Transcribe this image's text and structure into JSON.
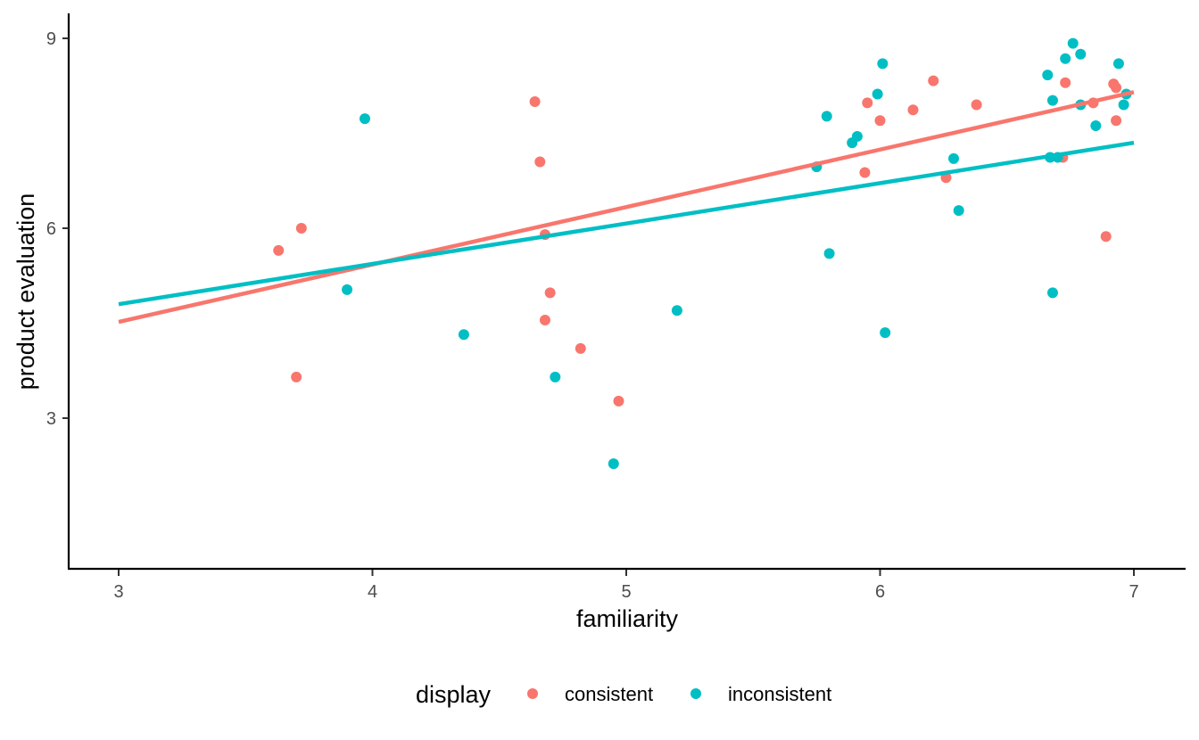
{
  "chart_data": {
    "type": "scatter",
    "xlabel": "familiarity",
    "ylabel": "product evaluation",
    "xlim": [
      2.8,
      7.2
    ],
    "ylim": [
      0.6,
      9.4
    ],
    "xticks": [
      "3",
      "4",
      "5",
      "6",
      "7"
    ],
    "yticks": [
      "3",
      "6",
      "9"
    ],
    "grid": false,
    "legend": {
      "title": "display",
      "placement": "bottom"
    },
    "series": [
      {
        "name": "consistent",
        "color": "#F8766D",
        "points": [
          [
            3.63,
            5.65
          ],
          [
            3.72,
            6.0
          ],
          [
            3.7,
            3.65
          ],
          [
            4.64,
            8.0
          ],
          [
            4.66,
            7.05
          ],
          [
            4.68,
            5.9
          ],
          [
            4.7,
            4.98
          ],
          [
            4.68,
            4.55
          ],
          [
            4.82,
            4.1
          ],
          [
            4.97,
            3.27
          ],
          [
            5.94,
            6.88
          ],
          [
            5.95,
            7.98
          ],
          [
            6.0,
            7.7
          ],
          [
            6.13,
            7.87
          ],
          [
            6.21,
            8.33
          ],
          [
            6.26,
            6.8
          ],
          [
            6.38,
            7.95
          ],
          [
            6.72,
            7.12
          ],
          [
            6.73,
            8.3
          ],
          [
            6.84,
            7.98
          ],
          [
            6.89,
            5.87
          ],
          [
            6.92,
            8.28
          ],
          [
            6.93,
            8.22
          ],
          [
            6.93,
            7.7
          ]
        ],
        "fit_line": {
          "x": [
            3.0,
            7.0
          ],
          "y": [
            4.52,
            8.15
          ]
        }
      },
      {
        "name": "inconsistent",
        "color": "#00BFC4",
        "points": [
          [
            3.9,
            5.03
          ],
          [
            3.97,
            7.73
          ],
          [
            4.36,
            4.32
          ],
          [
            4.72,
            3.65
          ],
          [
            4.95,
            2.28
          ],
          [
            5.2,
            4.7
          ],
          [
            5.75,
            6.97
          ],
          [
            5.79,
            7.77
          ],
          [
            5.8,
            5.6
          ],
          [
            5.89,
            7.35
          ],
          [
            5.91,
            7.45
          ],
          [
            5.99,
            8.12
          ],
          [
            6.01,
            8.6
          ],
          [
            6.02,
            4.35
          ],
          [
            6.29,
            7.1
          ],
          [
            6.31,
            6.28
          ],
          [
            6.66,
            8.42
          ],
          [
            6.67,
            7.12
          ],
          [
            6.68,
            4.98
          ],
          [
            6.68,
            8.02
          ],
          [
            6.7,
            7.12
          ],
          [
            6.73,
            8.68
          ],
          [
            6.76,
            8.92
          ],
          [
            6.79,
            8.75
          ],
          [
            6.79,
            7.95
          ],
          [
            6.85,
            7.62
          ],
          [
            6.94,
            8.6
          ],
          [
            6.96,
            7.95
          ],
          [
            6.97,
            8.12
          ]
        ],
        "fit_line": {
          "x": [
            3.0,
            7.0
          ],
          "y": [
            4.8,
            7.35
          ]
        }
      }
    ]
  }
}
